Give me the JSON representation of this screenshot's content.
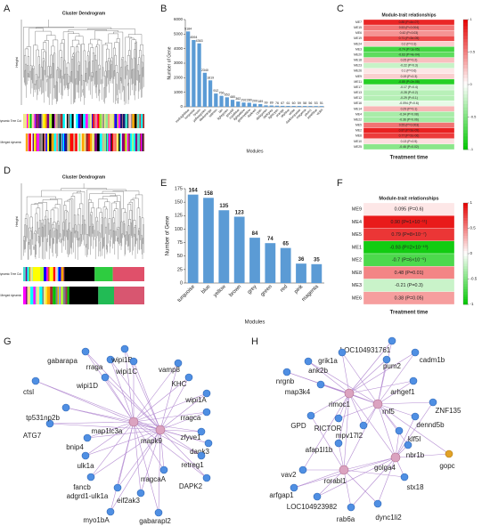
{
  "panel_labels": [
    "A",
    "B",
    "C",
    "D",
    "E",
    "F",
    "G",
    "H"
  ],
  "dendrograms": [
    {
      "title": "Cluster Dendrogram",
      "ylabel": "Height",
      "rows": [
        "Dynamic Tree Cut",
        "Merged dynamic"
      ]
    },
    {
      "title": "Cluster Dendrogram",
      "ylabel": "Height",
      "rows": [
        "Dynamic Tree Cut",
        "Merged dynamic"
      ]
    }
  ],
  "chart_data": [
    {
      "type": "bar",
      "xlabel": "Modules",
      "ylabel": "Number of Gene",
      "color": "#5b9bd5",
      "categories": [
        "midnightblue",
        "turquoise",
        "brown",
        "yellowgreen",
        "darkorange",
        "salmon",
        "tan",
        "lightgreen",
        "grey60",
        "royalblue",
        "lightyellow",
        "greenyellow",
        "darkred",
        "cyan",
        "darkgreen",
        "darkgrey",
        "lightcyan",
        "orange",
        "skyblue",
        "white",
        "darkturquoise",
        "magenta",
        "plum1",
        "steelblue",
        "violet"
      ],
      "values": [
        5184,
        4594,
        4363,
        2340,
        1819,
        912,
        756,
        653,
        480,
        362,
        292,
        280,
        209,
        189,
        99,
        89,
        76,
        67,
        61,
        60,
        59,
        58,
        56,
        53,
        51
      ],
      "ylim": [
        0,
        6000
      ],
      "yticks": [
        0,
        1000,
        2000,
        3000,
        4000,
        5000,
        6000
      ]
    },
    {
      "type": "bar",
      "xlabel": "Modules",
      "ylabel": "Number of Gene",
      "color": "#5b9bd5",
      "categories": [
        "turquoise",
        "blue",
        "yellow",
        "brown",
        "grey",
        "green",
        "red",
        "pink",
        "magenta"
      ],
      "values": [
        164,
        158,
        135,
        123,
        84,
        74,
        65,
        36,
        35
      ],
      "ylim": [
        0,
        175
      ],
      "yticks": [
        0,
        25,
        50,
        75,
        100,
        125,
        150,
        175
      ]
    },
    {
      "type": "heatmap",
      "title": "Module-trait relationships",
      "xlabel": "Treatment time",
      "categories": [
        "ME7",
        "ME15",
        "ME6",
        "ME19",
        "ME24",
        "ME3",
        "ME20",
        "ME18",
        "ME23",
        "ME26",
        "ME9",
        "ME11",
        "ME17",
        "ME13",
        "ME12",
        "ME16",
        "ME14",
        "ME4",
        "ME22",
        "ME5",
        "ME2",
        "ME8",
        "ME10",
        "ME25"
      ],
      "values": [
        0.85,
        0.53,
        0.42,
        0.71,
        0.2,
        -0.74,
        -0.63,
        0.25,
        -0.22,
        0.1,
        0.19,
        -0.85,
        -0.17,
        -0.28,
        -0.29,
        -0.094,
        0.29,
        -0.34,
        -0.36,
        0.55,
        0.87,
        0.77,
        0.13,
        -0.46
      ],
      "value_labels": [
        "0.85 (P=4e-07)",
        "0.53 (P=0.004)",
        "0.42 (P=0.03)",
        "0.71 (P=3e-05)",
        "0.2 (P=0.3)",
        "-0.74 (P=1e-05)",
        "-0.63 (P=4e-04)",
        "0.25 (P=0.2)",
        "-0.22 (P=0.3)",
        "0.1 (P=0.6)",
        "0.19 (P=0.3)",
        "-0.85 (P=2e-08)",
        "-0.17 (P=0.4)",
        "-0.28 (P=0.2)",
        "-0.29 (P=0.1)",
        "-0.094 (P=0.6)",
        "0.29 (P=0.1)",
        "-0.34 (P=0.08)",
        "-0.36 (P=0.06)",
        "0.55 (P=0.003)",
        "0.87 (P=3e-09)",
        "0.77 (P=2e-06)",
        "0.13 (P=0.5)",
        "-0.46 (P=0.02)"
      ],
      "colors": [
        "#00c800",
        "#ffffff",
        "#e60000"
      ],
      "zlim": [
        -1,
        1
      ],
      "zticks": [
        -1,
        -0.5,
        0,
        0.5,
        1
      ]
    },
    {
      "type": "heatmap",
      "title": "Module-trait relationships",
      "xlabel": "Treatment time",
      "categories": [
        "ME9",
        "ME4",
        "ME5",
        "ME1",
        "ME2",
        "ME8",
        "ME3",
        "ME6"
      ],
      "values": [
        0.095,
        0.9,
        0.79,
        -0.93,
        -0.7,
        0.48,
        -0.21,
        0.38
      ],
      "value_labels": [
        "0.095 (P=0.6)",
        "0.90 (P=1×10⁻¹¹)",
        "0.79 (P=8×10⁻⁷)",
        "-0.93 (P=2×10⁻¹⁰)",
        "-0.7 (P=6×10⁻⁵)",
        "0.48 (P=0.01)",
        "-0.21 (P=0.3)",
        "0.38 (P=0.05)"
      ],
      "colors": [
        "#00c800",
        "#ffffff",
        "#e60000"
      ],
      "zlim": [
        -1,
        1
      ],
      "zticks": [
        -1,
        -0.5,
        0,
        0.5,
        1
      ]
    }
  ],
  "networks": [
    {
      "nodes": [
        "ctsl",
        "gabarapa",
        "rraga",
        "wipi1B",
        "wipi1C",
        "wipi1D",
        "vamp8",
        "KHC",
        "wipi1A",
        "rragca",
        "zfyve1",
        "dapk3",
        "retreg1",
        "DAPK2",
        "rragcaA",
        "eif2ak3",
        "gabarapl2",
        "myo1bA",
        "adgrd1-ulk1a",
        "fancb",
        "ulk1a",
        "bnip4",
        "ATG7",
        "tp531np2b",
        "map1lc3a",
        "mapk9"
      ]
    },
    {
      "nodes": [
        "LOC104931761",
        "grik1a",
        "cadm1b",
        "pum2",
        "ank2b",
        "nrgnb",
        "map3k4",
        "arhgef1",
        "rimoc1",
        "rnf5",
        "ZNF135",
        "dennd5b",
        "GPD",
        "RICTOR",
        "mpv17l2",
        "klf5l",
        "afap1l1b",
        "nbr1b",
        "golga4",
        "gopc",
        "vav2",
        "rorabl1",
        "stx18",
        "arfgap1",
        "LOC104923982",
        "rab6a",
        "dync1li2"
      ]
    }
  ]
}
